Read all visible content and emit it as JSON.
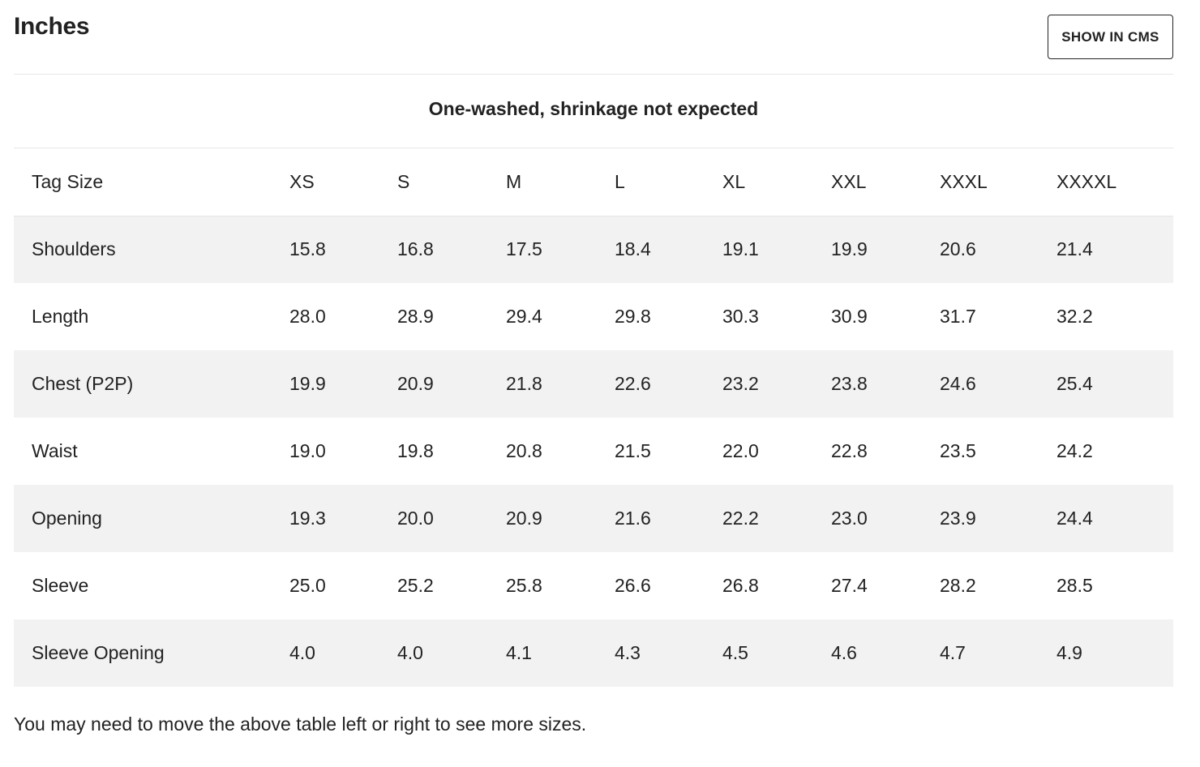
{
  "header": {
    "title": "Inches",
    "cms_button_label": "SHOW IN CMS"
  },
  "subtitle": "One-washed, shrinkage not expected",
  "table": {
    "columns": [
      "Tag Size",
      "XS",
      "S",
      "M",
      "L",
      "XL",
      "XXL",
      "XXXL",
      "XXXXL"
    ],
    "rows": [
      {
        "label": "Shoulders",
        "values": [
          "15.8",
          "16.8",
          "17.5",
          "18.4",
          "19.1",
          "19.9",
          "20.6",
          "21.4"
        ]
      },
      {
        "label": "Length",
        "values": [
          "28.0",
          "28.9",
          "29.4",
          "29.8",
          "30.3",
          "30.9",
          "31.7",
          "32.2"
        ]
      },
      {
        "label": "Chest (P2P)",
        "values": [
          "19.9",
          "20.9",
          "21.8",
          "22.6",
          "23.2",
          "23.8",
          "24.6",
          "25.4"
        ]
      },
      {
        "label": "Waist",
        "values": [
          "19.0",
          "19.8",
          "20.8",
          "21.5",
          "22.0",
          "22.8",
          "23.5",
          "24.2"
        ]
      },
      {
        "label": "Opening",
        "values": [
          "19.3",
          "20.0",
          "20.9",
          "21.6",
          "22.2",
          "23.0",
          "23.9",
          "24.4"
        ]
      },
      {
        "label": "Sleeve",
        "values": [
          "25.0",
          "25.2",
          "25.8",
          "26.6",
          "26.8",
          "27.4",
          "28.2",
          "28.5"
        ]
      },
      {
        "label": "Sleeve Opening",
        "values": [
          "4.0",
          "4.0",
          "4.1",
          "4.3",
          "4.5",
          "4.6",
          "4.7",
          "4.9"
        ]
      }
    ]
  },
  "footnote": "You may need to move the above table left or right to see more sizes."
}
